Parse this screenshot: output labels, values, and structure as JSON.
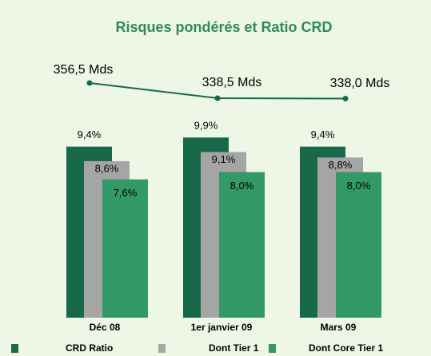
{
  "chart_data": {
    "type": "bar",
    "title": "Risques pondérés et Ratio CRD",
    "categories": [
      "Déc 08",
      "1er janvier 09",
      "Mars 09"
    ],
    "series": [
      {
        "name": "CRD Ratio",
        "color": "#17694a",
        "values": [
          9.4,
          9.9,
          9.4
        ],
        "value_labels": [
          "9,4%",
          "9,9%",
          "9,4%"
        ]
      },
      {
        "name": "Dont Tier 1",
        "color": "#a5a5a5",
        "values": [
          8.6,
          9.1,
          8.8
        ],
        "value_labels": [
          "8,6%",
          "9,1%",
          "8,8%"
        ]
      },
      {
        "name": "Dont Core Tier 1",
        "color": "#339966",
        "values": [
          7.6,
          8.0,
          8.0
        ],
        "value_labels": [
          "7,6%",
          "8,0%",
          "8,0%"
        ]
      },
      {
        "type": "line",
        "axis": "y2",
        "color": "#17694a",
        "values": [
          356.5,
          338.5,
          338.0
        ],
        "value_labels": [
          "356,5 Mds",
          "338,5 Mds",
          "338,0 Mds"
        ]
      }
    ],
    "ylim": [
      0,
      12
    ],
    "y2lim": [
      300,
      400
    ]
  }
}
